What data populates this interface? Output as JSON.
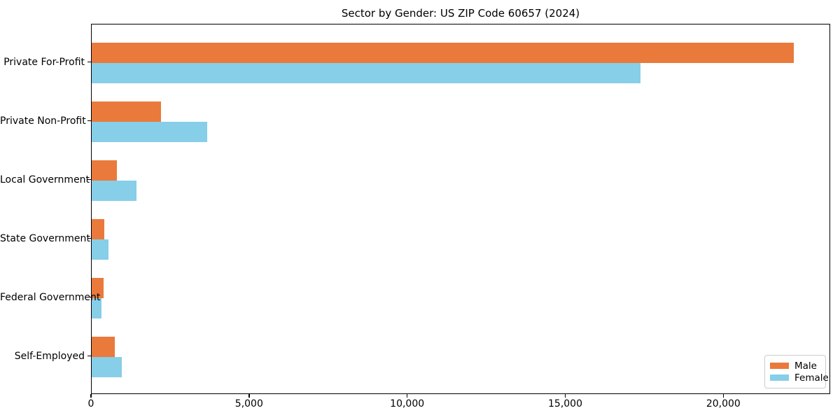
{
  "chart_data": {
    "type": "bar",
    "orientation": "horizontal",
    "title": "Sector by Gender: US ZIP Code 60657 (2024)",
    "categories": [
      "Private For-Profit",
      "Private Non-Profit",
      "Local Government",
      "State Government",
      "Federal Government",
      "Self-Employed"
    ],
    "series": [
      {
        "name": "Male",
        "color": "#E97A3C",
        "values": [
          22250,
          2200,
          800,
          390,
          370,
          740
        ]
      },
      {
        "name": "Female",
        "color": "#87CEE8",
        "values": [
          17400,
          3650,
          1410,
          540,
          310,
          950
        ]
      }
    ],
    "xlim": [
      0,
      23380
    ],
    "xticks": {
      "values": [
        0,
        5000,
        10000,
        15000,
        20000
      ],
      "labels": [
        "0",
        "5,000",
        "10,000",
        "15,000",
        "20,000"
      ]
    },
    "xlabel": "",
    "ylabel": "",
    "legend_position": "lower right",
    "grid": false,
    "background_color": "#ffffff"
  }
}
